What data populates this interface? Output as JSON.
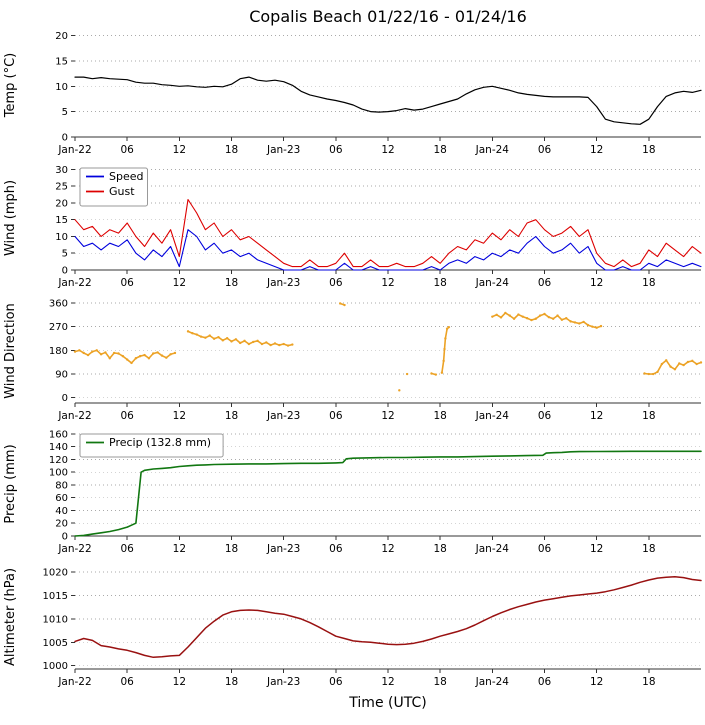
{
  "title": "Copalis Beach 01/22/16 - 01/24/16",
  "xaxis": {
    "label": "Time (UTC)",
    "range": [
      0,
      72
    ],
    "unit": "hours since 2016-01-22 00:00 UTC",
    "ticks": [
      {
        "t": 0,
        "label": "Jan-22"
      },
      {
        "t": 6,
        "label": "06"
      },
      {
        "t": 12,
        "label": "12"
      },
      {
        "t": 18,
        "label": "18"
      },
      {
        "t": 24,
        "label": "Jan-23"
      },
      {
        "t": 30,
        "label": "06"
      },
      {
        "t": 36,
        "label": "12"
      },
      {
        "t": 42,
        "label": "18"
      },
      {
        "t": 48,
        "label": "Jan-24"
      },
      {
        "t": 54,
        "label": "06"
      },
      {
        "t": 60,
        "label": "12"
      },
      {
        "t": 66,
        "label": "18"
      }
    ]
  },
  "chart_data": [
    {
      "type": "line",
      "ylabel": "Temp (°C)",
      "ylim": [
        0,
        20.5
      ],
      "yticks": [
        0,
        5,
        10,
        15,
        20
      ],
      "series": [
        {
          "name": "Temp",
          "color": "#000000",
          "width": 1.2,
          "t0": 0,
          "dt": 1,
          "values": [
            11.8,
            11.8,
            11.5,
            11.7,
            11.5,
            11.4,
            11.3,
            10.8,
            10.6,
            10.6,
            10.3,
            10.2,
            10.0,
            10.1,
            9.9,
            9.8,
            10.0,
            9.9,
            10.4,
            11.5,
            11.8,
            11.2,
            11.0,
            11.2,
            10.9,
            10.2,
            9.0,
            8.3,
            7.9,
            7.5,
            7.2,
            6.8,
            6.3,
            5.5,
            5.0,
            4.9,
            5.0,
            5.2,
            5.6,
            5.3,
            5.5,
            6.0,
            6.5,
            7.0,
            7.5,
            8.5,
            9.3,
            9.8,
            10.0,
            9.6,
            9.2,
            8.7,
            8.4,
            8.2,
            8.0,
            7.9,
            7.9,
            7.9,
            7.9,
            7.8,
            6.0,
            3.5,
            3.0,
            2.8,
            2.6,
            2.5,
            3.5,
            6.0,
            8.0,
            8.7,
            9.0,
            8.8,
            9.2
          ]
        }
      ]
    },
    {
      "type": "line",
      "ylabel": "Wind (mph)",
      "ylim": [
        0,
        31
      ],
      "yticks": [
        0,
        5,
        10,
        15,
        20,
        25,
        30
      ],
      "legend": {
        "entries": [
          {
            "label": "Speed",
            "color": "#0000dd"
          },
          {
            "label": "Gust",
            "color": "#dd0000"
          }
        ]
      },
      "series": [
        {
          "name": "Speed",
          "color": "#0000dd",
          "width": 1.1,
          "t0": 0,
          "dt": 1,
          "values": [
            10,
            7,
            8,
            6,
            8,
            7,
            9,
            5,
            3,
            6,
            4,
            7,
            1,
            12,
            10,
            6,
            8,
            5,
            6,
            4,
            5,
            3,
            2,
            1,
            0,
            0,
            0,
            1,
            0,
            0,
            0,
            2,
            0,
            0,
            1,
            0,
            0,
            0,
            0,
            0,
            0,
            1,
            0,
            2,
            3,
            2,
            4,
            3,
            5,
            4,
            6,
            5,
            8,
            10,
            7,
            5,
            6,
            8,
            5,
            7,
            2,
            0,
            0,
            1,
            0,
            0,
            2,
            1,
            3,
            2,
            1,
            2,
            1
          ]
        },
        {
          "name": "Gust",
          "color": "#dd0000",
          "width": 1.1,
          "t0": 0,
          "dt": 1,
          "values": [
            15,
            12,
            13,
            10,
            12,
            11,
            14,
            10,
            7,
            11,
            8,
            12,
            4,
            21,
            17,
            12,
            14,
            10,
            12,
            9,
            10,
            8,
            6,
            4,
            2,
            1,
            1,
            3,
            1,
            1,
            2,
            5,
            1,
            1,
            3,
            1,
            1,
            2,
            1,
            1,
            2,
            4,
            2,
            5,
            7,
            6,
            9,
            8,
            11,
            9,
            12,
            10,
            14,
            15,
            12,
            10,
            11,
            13,
            10,
            12,
            5,
            2,
            1,
            3,
            1,
            2,
            6,
            4,
            8,
            6,
            4,
            7,
            5
          ]
        }
      ]
    },
    {
      "type": "scatter",
      "ylabel": "Wind Direction",
      "ylim": [
        -20,
        375
      ],
      "yticks": [
        0,
        90,
        180,
        270,
        360
      ],
      "series": [
        {
          "name": "Direction",
          "color": "#eca225",
          "connect_gap": 0.7,
          "points": [
            [
              0,
              175
            ],
            [
              0.5,
              180
            ],
            [
              1,
              170
            ],
            [
              1.5,
              162
            ],
            [
              2,
              175
            ],
            [
              2.5,
              180
            ],
            [
              3,
              165
            ],
            [
              3.5,
              172
            ],
            [
              4,
              150
            ],
            [
              4.5,
              170
            ],
            [
              5,
              168
            ],
            [
              5.5,
              158
            ],
            [
              6,
              145
            ],
            [
              6.5,
              132
            ],
            [
              7,
              150
            ],
            [
              7.5,
              158
            ],
            [
              8,
              162
            ],
            [
              8.5,
              150
            ],
            [
              9,
              168
            ],
            [
              9.5,
              172
            ],
            [
              10,
              160
            ],
            [
              10.5,
              152
            ],
            [
              11,
              165
            ],
            [
              11.5,
              170
            ],
            [
              13,
              252
            ],
            [
              13.5,
              245
            ],
            [
              14,
              240
            ],
            [
              14.5,
              232
            ],
            [
              15,
              228
            ],
            [
              15.5,
              236
            ],
            [
              16,
              224
            ],
            [
              16.5,
              230
            ],
            [
              17,
              218
            ],
            [
              17.5,
              226
            ],
            [
              18,
              214
            ],
            [
              18.5,
              222
            ],
            [
              19,
              208
            ],
            [
              19.5,
              216
            ],
            [
              20,
              204
            ],
            [
              20.5,
              212
            ],
            [
              21,
              216
            ],
            [
              21.5,
              204
            ],
            [
              22,
              210
            ],
            [
              22.5,
              200
            ],
            [
              23,
              206
            ],
            [
              23.5,
              200
            ],
            [
              24,
              204
            ],
            [
              24.5,
              198
            ],
            [
              25,
              202
            ],
            [
              30.5,
              358
            ],
            [
              31,
              352
            ],
            [
              37.3,
              28
            ],
            [
              38.2,
              90
            ],
            [
              41,
              92
            ],
            [
              41.5,
              88
            ],
            [
              42.2,
              95
            ],
            [
              42.4,
              140
            ],
            [
              42.5,
              185
            ],
            [
              42.6,
              225
            ],
            [
              42.8,
              262
            ],
            [
              43,
              268
            ],
            [
              48,
              308
            ],
            [
              48.5,
              315
            ],
            [
              49,
              305
            ],
            [
              49.5,
              322
            ],
            [
              50,
              312
            ],
            [
              50.5,
              300
            ],
            [
              51,
              316
            ],
            [
              51.5,
              308
            ],
            [
              52,
              302
            ],
            [
              52.5,
              295
            ],
            [
              53,
              300
            ],
            [
              53.5,
              312
            ],
            [
              54,
              318
            ],
            [
              54.5,
              306
            ],
            [
              55,
              300
            ],
            [
              55.5,
              312
            ],
            [
              56,
              296
            ],
            [
              56.5,
              302
            ],
            [
              57,
              290
            ],
            [
              57.5,
              286
            ],
            [
              58,
              282
            ],
            [
              58.5,
              288
            ],
            [
              59,
              276
            ],
            [
              59.5,
              270
            ],
            [
              60,
              266
            ],
            [
              60.5,
              272
            ],
            [
              65.5,
              92
            ],
            [
              66,
              90
            ],
            [
              66.5,
              90
            ],
            [
              67,
              98
            ],
            [
              67.5,
              128
            ],
            [
              68,
              142
            ],
            [
              68.5,
              118
            ],
            [
              69,
              108
            ],
            [
              69.5,
              130
            ],
            [
              70,
              124
            ],
            [
              70.5,
              136
            ],
            [
              71,
              140
            ],
            [
              71.5,
              128
            ],
            [
              72,
              134
            ]
          ]
        }
      ]
    },
    {
      "type": "line",
      "ylabel": "Precip (mm)",
      "ylim": [
        0,
        163
      ],
      "yticks": [
        0,
        20,
        40,
        60,
        80,
        100,
        120,
        140,
        160
      ],
      "legend": {
        "entries": [
          {
            "label": "Precip (132.8 mm)",
            "color": "#117711"
          }
        ]
      },
      "series": [
        {
          "name": "Precip",
          "color": "#117711",
          "width": 1.6,
          "points": [
            [
              0,
              0
            ],
            [
              1,
              1
            ],
            [
              2,
              3
            ],
            [
              3,
              5
            ],
            [
              4,
              7
            ],
            [
              5,
              10
            ],
            [
              6,
              14
            ],
            [
              6.5,
              17
            ],
            [
              7,
              20
            ],
            [
              7.3,
              60
            ],
            [
              7.6,
              100
            ],
            [
              8,
              103
            ],
            [
              9,
              105
            ],
            [
              10,
              106
            ],
            [
              11,
              107
            ],
            [
              12,
              109
            ],
            [
              13,
              110
            ],
            [
              14,
              111
            ],
            [
              15,
              111.5
            ],
            [
              16,
              112
            ],
            [
              18,
              112.5
            ],
            [
              20,
              113
            ],
            [
              22,
              113
            ],
            [
              24,
              113.5
            ],
            [
              26,
              114
            ],
            [
              28,
              114
            ],
            [
              30,
              114.5
            ],
            [
              30.8,
              115
            ],
            [
              31.2,
              121
            ],
            [
              32,
              122
            ],
            [
              34,
              122.5
            ],
            [
              36,
              123
            ],
            [
              38,
              123
            ],
            [
              40,
              123.5
            ],
            [
              42,
              124
            ],
            [
              44,
              124
            ],
            [
              46,
              124.5
            ],
            [
              48,
              125
            ],
            [
              50,
              125.5
            ],
            [
              52,
              126
            ],
            [
              53.8,
              126.5
            ],
            [
              54.2,
              130
            ],
            [
              55,
              130.5
            ],
            [
              56,
              131
            ],
            [
              57,
              132
            ],
            [
              58,
              132.3
            ],
            [
              60,
              132.5
            ],
            [
              62,
              132.6
            ],
            [
              64,
              132.7
            ],
            [
              66,
              132.8
            ],
            [
              68,
              132.8
            ],
            [
              70,
              132.8
            ],
            [
              72,
              132.8
            ]
          ]
        }
      ]
    },
    {
      "type": "line",
      "ylabel": "Altimeter (hPa)",
      "ylim": [
        999.3,
        1021.5
      ],
      "yticks": [
        1000,
        1005,
        1010,
        1015,
        1020
      ],
      "series": [
        {
          "name": "Altimeter",
          "color": "#991111",
          "width": 1.5,
          "t0": 0,
          "dt": 1,
          "values": [
            1005.2,
            1005.8,
            1005.4,
            1004.3,
            1004.0,
            1003.6,
            1003.3,
            1002.8,
            1002.2,
            1001.8,
            1001.9,
            1002.1,
            1002.2,
            1004.0,
            1006.0,
            1008.0,
            1009.5,
            1010.8,
            1011.5,
            1011.8,
            1011.9,
            1011.8,
            1011.5,
            1011.2,
            1011.0,
            1010.5,
            1010.0,
            1009.2,
            1008.3,
            1007.3,
            1006.3,
            1005.8,
            1005.3,
            1005.1,
            1005.0,
            1004.8,
            1004.6,
            1004.5,
            1004.6,
            1004.8,
            1005.2,
            1005.7,
            1006.3,
            1006.8,
            1007.3,
            1007.9,
            1008.7,
            1009.6,
            1010.5,
            1011.3,
            1012.0,
            1012.6,
            1013.1,
            1013.6,
            1014.0,
            1014.3,
            1014.6,
            1014.9,
            1015.1,
            1015.3,
            1015.5,
            1015.8,
            1016.2,
            1016.7,
            1017.2,
            1017.8,
            1018.3,
            1018.7,
            1018.9,
            1019.0,
            1018.8,
            1018.4,
            1018.2
          ]
        }
      ]
    }
  ],
  "style": {
    "grid_color": "#aaaaaa",
    "spine_color": "#333333",
    "background": "#ffffff"
  }
}
